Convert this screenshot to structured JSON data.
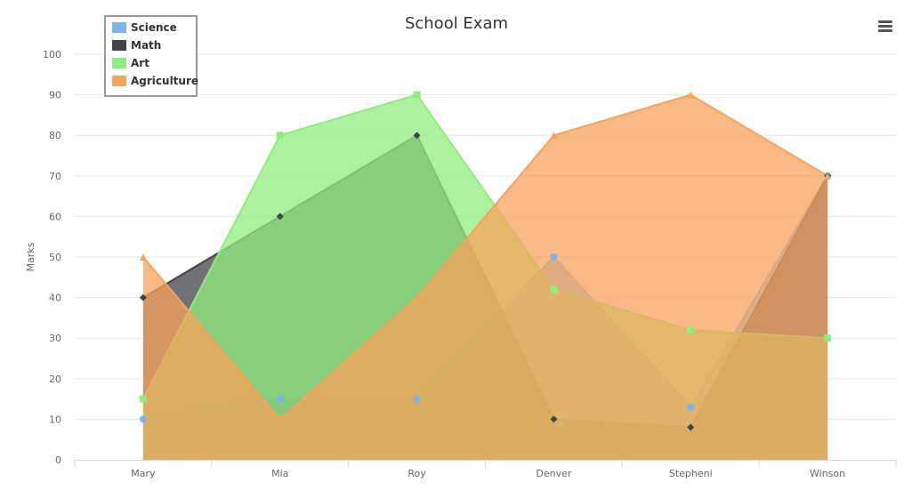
{
  "chart_data": {
    "type": "area",
    "title": "School Exam",
    "xlabel": "",
    "ylabel": "Marks",
    "categories": [
      "Mary",
      "Mia",
      "Roy",
      "Denver",
      "Stepheni",
      "Winson"
    ],
    "ylim": [
      0,
      100
    ],
    "yticks": [
      0,
      10,
      20,
      30,
      40,
      50,
      60,
      70,
      80,
      90,
      100
    ],
    "grid": true,
    "legend_position": "top-left",
    "series": [
      {
        "name": "Science",
        "color": "#7cb5ec",
        "marker": "circle",
        "values": [
          10,
          15,
          15,
          50,
          13,
          70
        ]
      },
      {
        "name": "Math",
        "color": "#434348",
        "marker": "diamond",
        "values": [
          40,
          60,
          80,
          10,
          8,
          70
        ]
      },
      {
        "name": "Art",
        "color": "#90ed7d",
        "marker": "square",
        "values": [
          15,
          80,
          90,
          42,
          32,
          30
        ]
      },
      {
        "name": "Agriculture",
        "color": "#f7a35c",
        "marker": "triangle",
        "values": [
          50,
          10,
          40,
          80,
          90,
          70
        ]
      }
    ]
  },
  "toolbar": {
    "menu_icon": "hamburger-menu-icon"
  }
}
